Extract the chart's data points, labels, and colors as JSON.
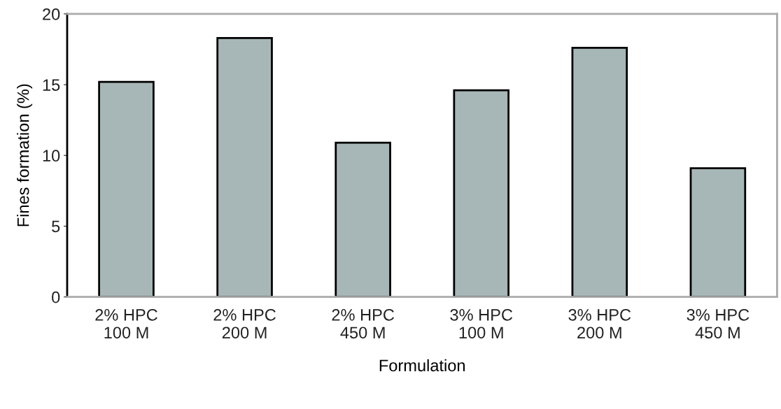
{
  "chart_data": {
    "type": "bar",
    "xlabel": "Formulation",
    "ylabel": "Fines formation (%)",
    "categories": [
      "2% HPC\n100 M",
      "2% HPC\n200 M",
      "2% HPC\n450 M",
      "3% HPC\n100 M",
      "3% HPC\n200 M",
      "3% HPC\n450 M"
    ],
    "values": [
      15.2,
      18.3,
      10.9,
      14.6,
      17.6,
      9.1
    ],
    "color": "#a7b6b6",
    "ylim": [
      0,
      20
    ],
    "yticks": [
      0,
      5,
      10,
      15,
      20
    ],
    "grid": false,
    "legend": false
  }
}
